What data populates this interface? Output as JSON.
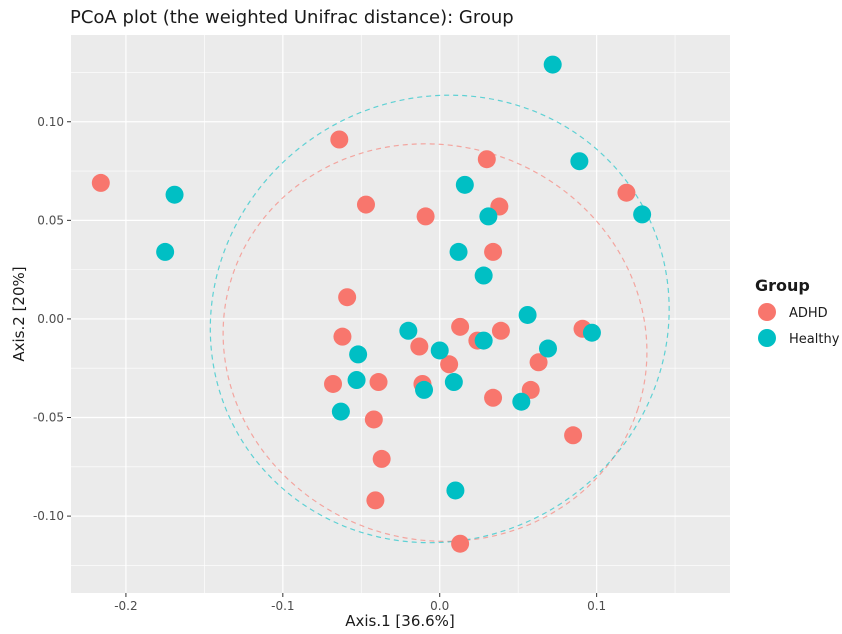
{
  "chart_data": {
    "type": "scatter",
    "title": "PCoA plot (the weighted Unifrac distance): Group",
    "xlabel": "Axis.1   [36.6%]",
    "ylabel": "Axis.2   [20%]",
    "xlim": [
      -0.235,
      0.185
    ],
    "ylim": [
      -0.139,
      0.144
    ],
    "x_ticks": [
      -0.2,
      -0.1,
      0.0,
      0.1
    ],
    "x_tick_labels": [
      "-0.2",
      "-0.1",
      "0.0",
      "0.1"
    ],
    "y_ticks": [
      -0.1,
      -0.05,
      0.0,
      0.05,
      0.1
    ],
    "y_tick_labels": [
      "-0.10",
      "-0.05",
      "0.00",
      "0.05",
      "0.10"
    ],
    "grid": true,
    "legend": {
      "title": "Group",
      "position": "right"
    },
    "series": [
      {
        "name": "ADHD",
        "color": "#F8766D",
        "points": [
          [
            -0.216,
            0.069
          ],
          [
            -0.064,
            0.091
          ],
          [
            -0.047,
            0.058
          ],
          [
            -0.009,
            0.052
          ],
          [
            0.03,
            0.081
          ],
          [
            0.038,
            0.057
          ],
          [
            0.034,
            0.034
          ],
          [
            0.119,
            0.064
          ],
          [
            -0.059,
            0.011
          ],
          [
            -0.062,
            -0.009
          ],
          [
            -0.013,
            -0.014
          ],
          [
            0.013,
            -0.004
          ],
          [
            0.024,
            -0.011
          ],
          [
            0.039,
            -0.006
          ],
          [
            0.063,
            -0.022
          ],
          [
            0.091,
            -0.005
          ],
          [
            -0.068,
            -0.033
          ],
          [
            -0.039,
            -0.032
          ],
          [
            -0.011,
            -0.033
          ],
          [
            0.006,
            -0.023
          ],
          [
            0.034,
            -0.04
          ],
          [
            0.058,
            -0.036
          ],
          [
            -0.042,
            -0.051
          ],
          [
            -0.037,
            -0.071
          ],
          [
            -0.041,
            -0.092
          ],
          [
            0.085,
            -0.059
          ],
          [
            0.013,
            -0.114
          ]
        ]
      },
      {
        "name": "Healthy",
        "color": "#00BFC4",
        "points": [
          [
            0.072,
            0.129
          ],
          [
            0.089,
            0.08
          ],
          [
            -0.169,
            0.063
          ],
          [
            -0.175,
            0.034
          ],
          [
            0.016,
            0.068
          ],
          [
            0.031,
            0.052
          ],
          [
            0.129,
            0.053
          ],
          [
            0.012,
            0.034
          ],
          [
            0.028,
            0.022
          ],
          [
            0.056,
            0.002
          ],
          [
            0.097,
            -0.007
          ],
          [
            -0.02,
            -0.006
          ],
          [
            -0.052,
            -0.018
          ],
          [
            0.0,
            -0.016
          ],
          [
            0.028,
            -0.011
          ],
          [
            0.069,
            -0.015
          ],
          [
            -0.053,
            -0.031
          ],
          [
            -0.01,
            -0.036
          ],
          [
            0.009,
            -0.032
          ],
          [
            0.052,
            -0.042
          ],
          [
            -0.063,
            -0.047
          ],
          [
            0.01,
            -0.087
          ]
        ]
      }
    ],
    "ellipses": [
      {
        "group": "ADHD",
        "color": "#F8766D",
        "cx": -0.003,
        "cy": -0.012,
        "rx": 0.136,
        "ry": 0.1,
        "angle": -18
      },
      {
        "group": "Healthy",
        "color": "#00BFC4",
        "cx": 0.0,
        "cy": 0.0,
        "rx": 0.148,
        "ry": 0.112,
        "angle": 30
      }
    ]
  }
}
